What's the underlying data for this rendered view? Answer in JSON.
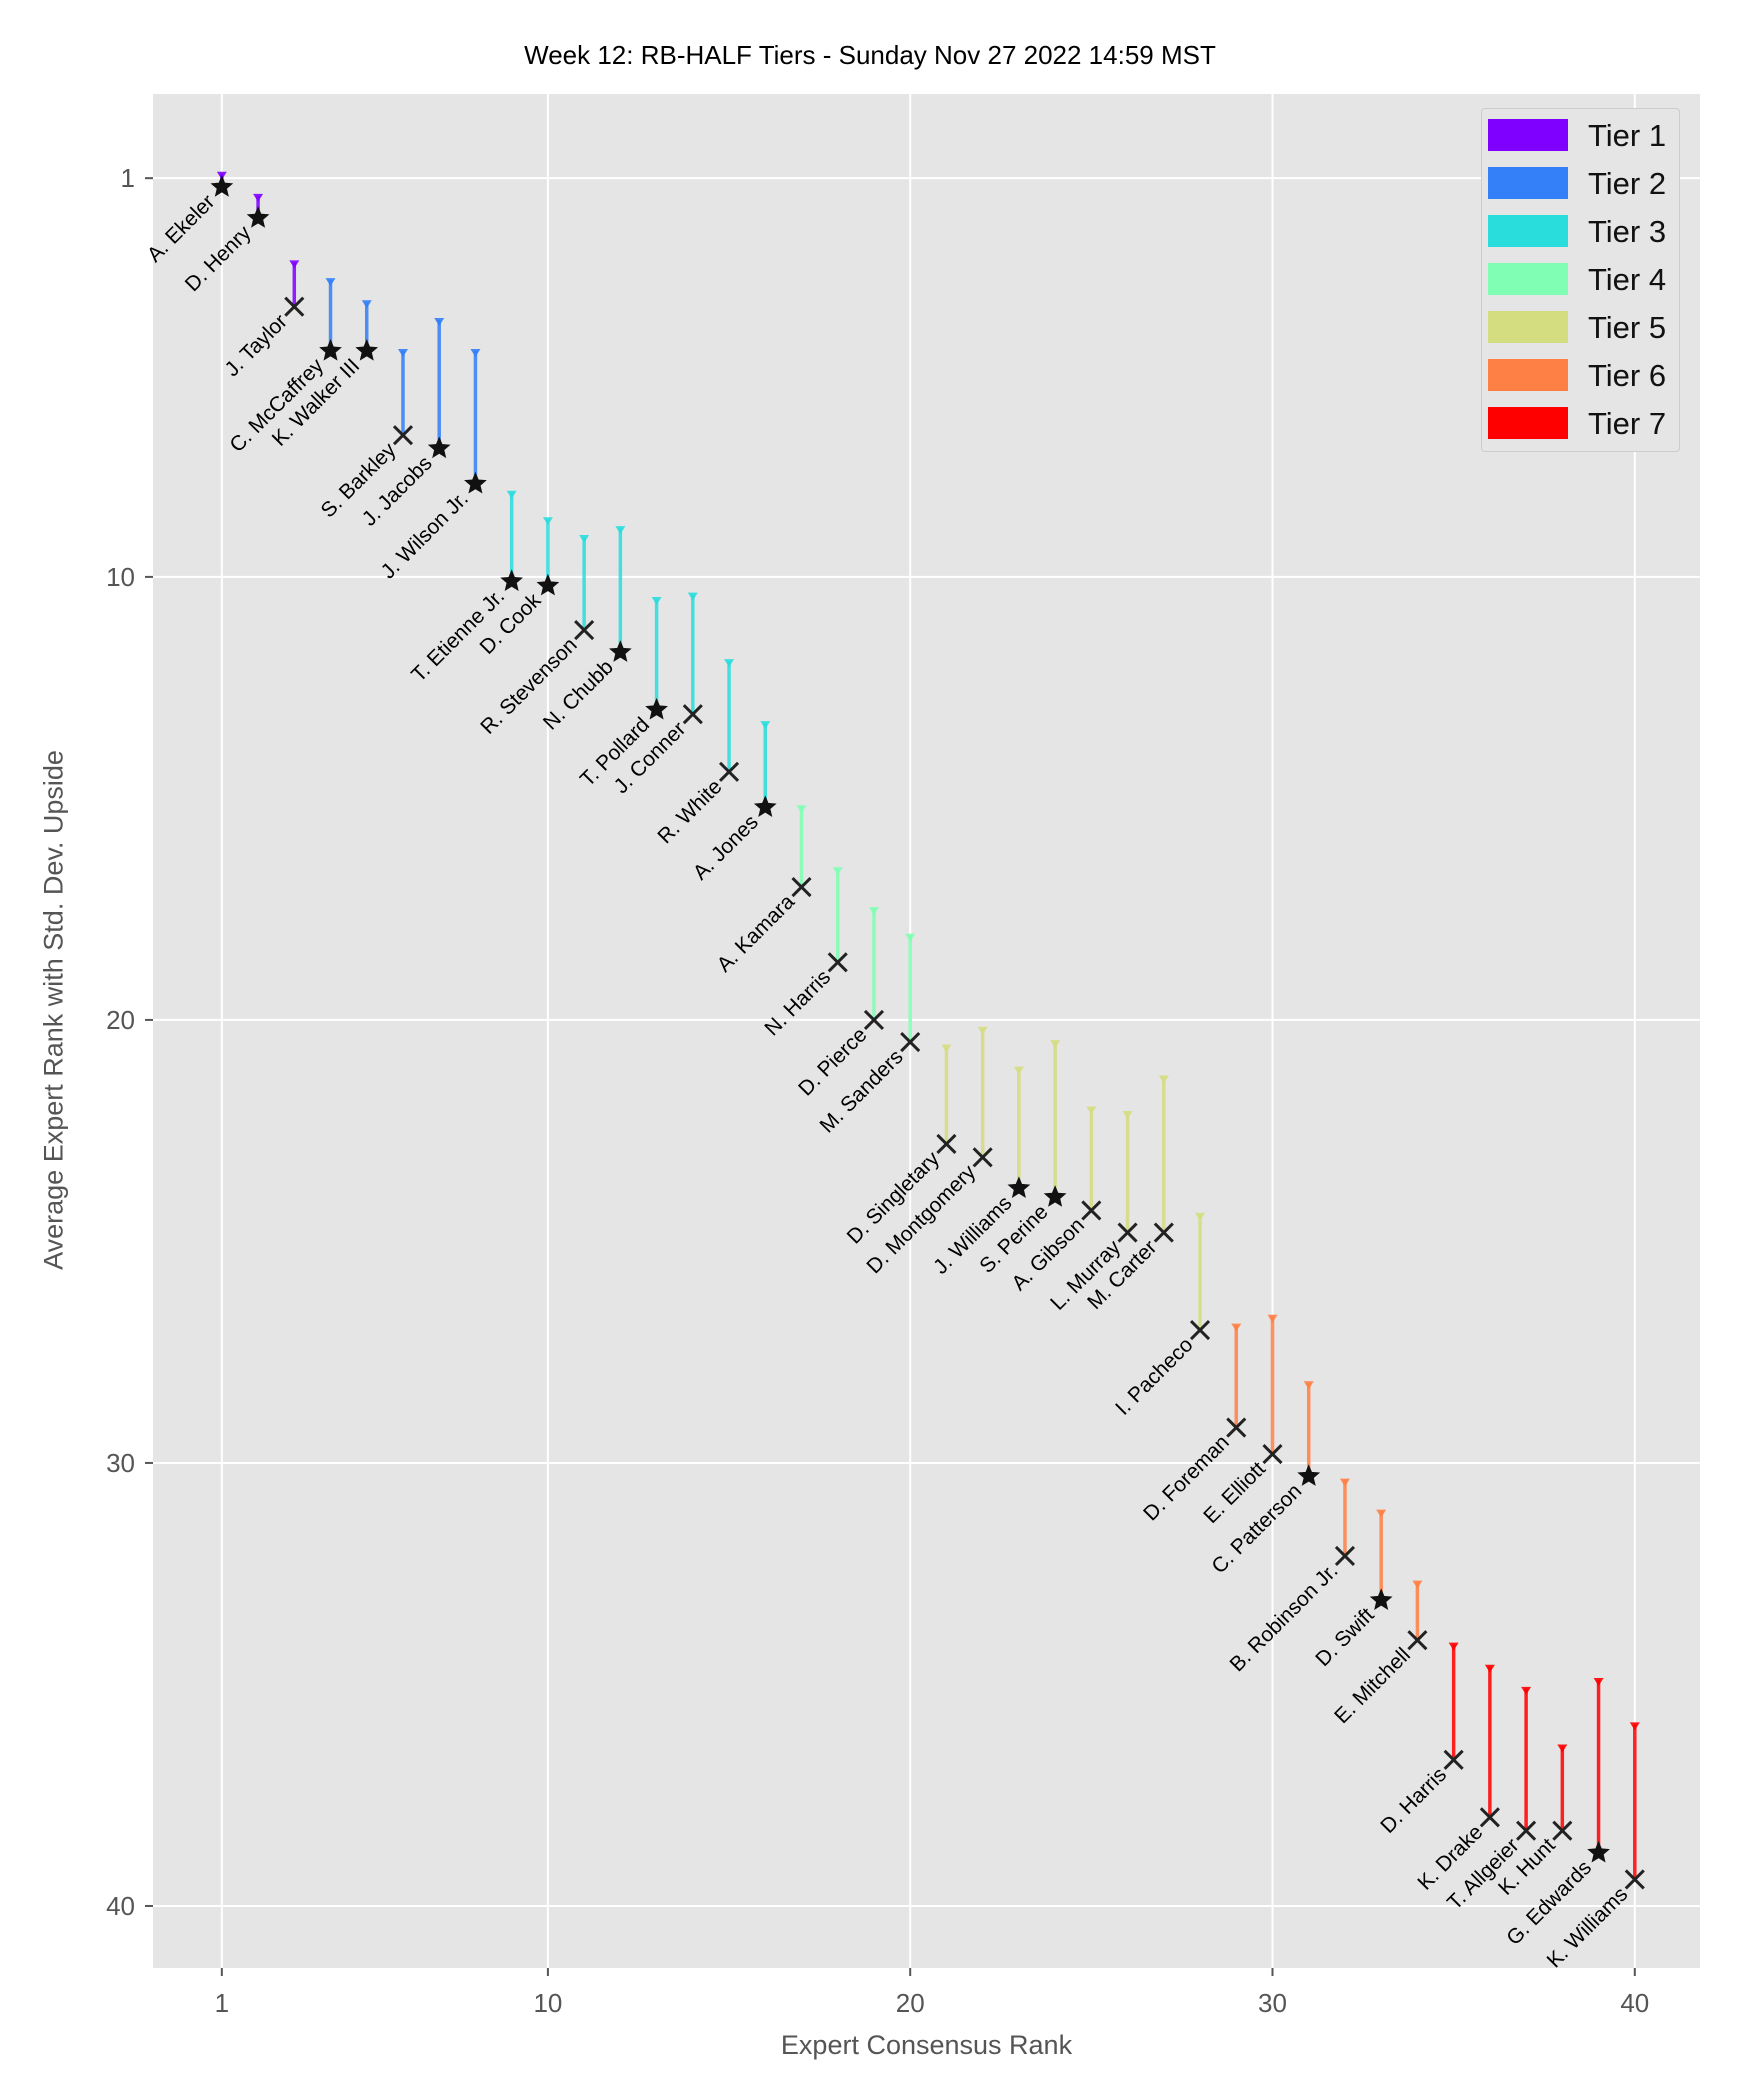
{
  "chart_data": {
    "type": "scatter",
    "title": "Week 12: RB-HALF Tiers - Sunday Nov 27 2022 14:59 MST",
    "xlabel": "Expert Consensus Rank",
    "ylabel": "Average Expert Rank with Std. Dev. Upside",
    "xlim": [
      -0.9,
      41.8
    ],
    "ylim": [
      41.4,
      -0.9
    ],
    "y_inverted": true,
    "xticks": [
      1,
      10,
      20,
      30,
      40
    ],
    "yticks": [
      1,
      10,
      20,
      30,
      40
    ],
    "grid": true,
    "legend_position": "top-right",
    "tiers": [
      {
        "name": "Tier 1",
        "color": "#8000ff"
      },
      {
        "name": "Tier 2",
        "color": "#3380f8"
      },
      {
        "name": "Tier 3",
        "color": "#2adddd"
      },
      {
        "name": "Tier 4",
        "color": "#80ffb4"
      },
      {
        "name": "Tier 5",
        "color": "#d4dd80"
      },
      {
        "name": "Tier 6",
        "color": "#ff8044"
      },
      {
        "name": "Tier 7",
        "color": "#ff0000"
      }
    ],
    "players": [
      {
        "name": "A. Ekeler",
        "x": 1,
        "y": 1.2,
        "upside": 0.9,
        "tier": 1,
        "marker": "star"
      },
      {
        "name": "D. Henry",
        "x": 2,
        "y": 1.9,
        "upside": 1.4,
        "tier": 1,
        "marker": "star"
      },
      {
        "name": "J. Taylor",
        "x": 3,
        "y": 3.9,
        "upside": 2.9,
        "tier": 1,
        "marker": "x"
      },
      {
        "name": "C. McCaffrey",
        "x": 4,
        "y": 4.9,
        "upside": 3.3,
        "tier": 2,
        "marker": "star"
      },
      {
        "name": "K. Walker III",
        "x": 5,
        "y": 4.9,
        "upside": 3.8,
        "tier": 2,
        "marker": "star"
      },
      {
        "name": "S. Barkley",
        "x": 6,
        "y": 6.8,
        "upside": 4.9,
        "tier": 2,
        "marker": "x"
      },
      {
        "name": "J. Jacobs",
        "x": 7,
        "y": 7.1,
        "upside": 4.2,
        "tier": 2,
        "marker": "star"
      },
      {
        "name": "J. Wilson Jr.",
        "x": 8,
        "y": 7.9,
        "upside": 4.9,
        "tier": 2,
        "marker": "star"
      },
      {
        "name": "T. Etienne Jr.",
        "x": 9,
        "y": 10.1,
        "upside": 8.1,
        "tier": 3,
        "marker": "star"
      },
      {
        "name": "D. Cook",
        "x": 10,
        "y": 10.2,
        "upside": 8.7,
        "tier": 3,
        "marker": "star"
      },
      {
        "name": "R. Stevenson",
        "x": 11,
        "y": 11.2,
        "upside": 9.1,
        "tier": 3,
        "marker": "x"
      },
      {
        "name": "N. Chubb",
        "x": 12,
        "y": 11.7,
        "upside": 8.9,
        "tier": 3,
        "marker": "star"
      },
      {
        "name": "T. Pollard",
        "x": 13,
        "y": 13.0,
        "upside": 10.5,
        "tier": 3,
        "marker": "star"
      },
      {
        "name": "J. Conner",
        "x": 14,
        "y": 13.1,
        "upside": 10.4,
        "tier": 3,
        "marker": "x"
      },
      {
        "name": "R. White",
        "x": 15,
        "y": 14.4,
        "upside": 11.9,
        "tier": 3,
        "marker": "x"
      },
      {
        "name": "A. Jones",
        "x": 16,
        "y": 15.2,
        "upside": 13.3,
        "tier": 3,
        "marker": "star"
      },
      {
        "name": "A. Kamara",
        "x": 17,
        "y": 17.0,
        "upside": 15.2,
        "tier": 4,
        "marker": "x"
      },
      {
        "name": "N. Harris",
        "x": 18,
        "y": 18.7,
        "upside": 16.6,
        "tier": 4,
        "marker": "x"
      },
      {
        "name": "D. Pierce",
        "x": 19,
        "y": 20.0,
        "upside": 17.5,
        "tier": 4,
        "marker": "x"
      },
      {
        "name": "M. Sanders",
        "x": 20,
        "y": 20.5,
        "upside": 18.1,
        "tier": 4,
        "marker": "x"
      },
      {
        "name": "D. Singletary",
        "x": 21,
        "y": 22.8,
        "upside": 20.6,
        "tier": 5,
        "marker": "x"
      },
      {
        "name": "D. Montgomery",
        "x": 22,
        "y": 23.1,
        "upside": 20.2,
        "tier": 5,
        "marker": "x"
      },
      {
        "name": "J. Williams",
        "x": 23,
        "y": 23.8,
        "upside": 21.1,
        "tier": 5,
        "marker": "star"
      },
      {
        "name": "S. Perine",
        "x": 24,
        "y": 24.0,
        "upside": 20.5,
        "tier": 5,
        "marker": "star"
      },
      {
        "name": "A. Gibson",
        "x": 25,
        "y": 24.3,
        "upside": 22.0,
        "tier": 5,
        "marker": "x"
      },
      {
        "name": "L. Murray",
        "x": 26,
        "y": 24.8,
        "upside": 22.1,
        "tier": 5,
        "marker": "x"
      },
      {
        "name": "M. Carter",
        "x": 27,
        "y": 24.8,
        "upside": 21.3,
        "tier": 5,
        "marker": "x"
      },
      {
        "name": "I. Pacheco",
        "x": 28,
        "y": 27.0,
        "upside": 24.4,
        "tier": 5,
        "marker": "x"
      },
      {
        "name": "D. Foreman",
        "x": 29,
        "y": 29.2,
        "upside": 26.9,
        "tier": 6,
        "marker": "x"
      },
      {
        "name": "E. Elliott",
        "x": 30,
        "y": 29.8,
        "upside": 26.7,
        "tier": 6,
        "marker": "x"
      },
      {
        "name": "C. Patterson",
        "x": 31,
        "y": 30.3,
        "upside": 28.2,
        "tier": 6,
        "marker": "star"
      },
      {
        "name": "B. Robinson Jr.",
        "x": 32,
        "y": 32.1,
        "upside": 30.4,
        "tier": 6,
        "marker": "x"
      },
      {
        "name": "D. Swift",
        "x": 33,
        "y": 33.1,
        "upside": 31.1,
        "tier": 6,
        "marker": "star"
      },
      {
        "name": "E. Mitchell",
        "x": 34,
        "y": 34.0,
        "upside": 32.7,
        "tier": 6,
        "marker": "x"
      },
      {
        "name": "D. Harris",
        "x": 35,
        "y": 36.7,
        "upside": 34.1,
        "tier": 7,
        "marker": "x"
      },
      {
        "name": "K. Drake",
        "x": 36,
        "y": 38.0,
        "upside": 34.6,
        "tier": 7,
        "marker": "x"
      },
      {
        "name": "T. Allgeier",
        "x": 37,
        "y": 38.3,
        "upside": 35.1,
        "tier": 7,
        "marker": "x"
      },
      {
        "name": "K. Hunt",
        "x": 38,
        "y": 38.3,
        "upside": 36.4,
        "tier": 7,
        "marker": "x"
      },
      {
        "name": "G. Edwards",
        "x": 39,
        "y": 38.8,
        "upside": 34.9,
        "tier": 7,
        "marker": "star"
      },
      {
        "name": "K. Williams",
        "x": 40,
        "y": 39.4,
        "upside": 35.9,
        "tier": 7,
        "marker": "x"
      }
    ]
  }
}
